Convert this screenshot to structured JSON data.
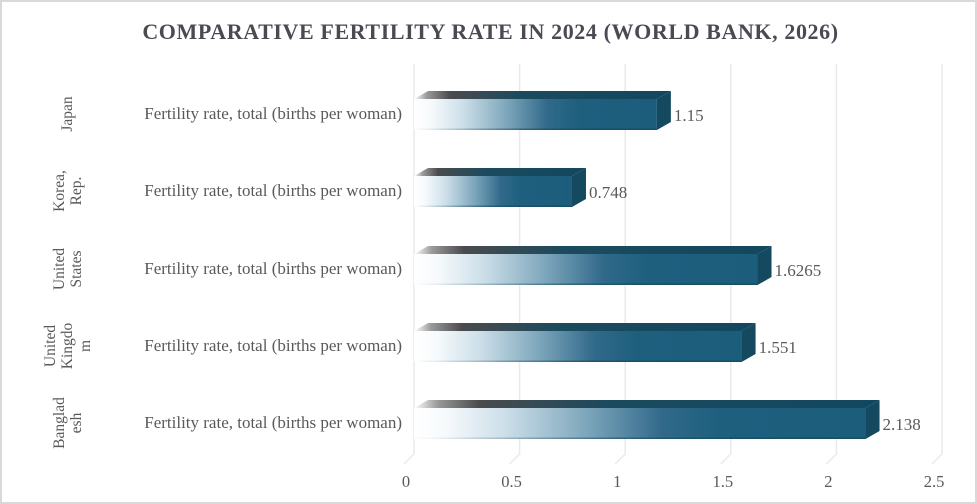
{
  "window": {
    "type": "spreadsheet-chart",
    "background": "#FFFFFF",
    "border_color": "#D9D9D9"
  },
  "chart_data": {
    "type": "bar",
    "orientation": "horizontal",
    "style": "3d-beveled-bars-with-white-fade-gradient",
    "title": "COMPARATIVE FERTILITY RATE IN 2024 (WORLD BANK, 2026)",
    "series": [
      {
        "name": "Fertility rate, total (births per woman)",
        "values": [
          1.15,
          0.748,
          1.6265,
          1.551,
          2.138
        ]
      }
    ],
    "categories": [
      "Japan",
      "Korea, Rep.",
      "United States",
      "United Kingdom",
      "Bangladesh"
    ],
    "category_display_lines": [
      "Japan",
      "Korea,\nRep.",
      "United\nStates",
      "United\nKingdo\nm",
      "Banglad\nesh"
    ],
    "value_labels": [
      "1.15",
      "0.748",
      "1.6265",
      "1.551",
      "2.138"
    ],
    "xlim": [
      0,
      2.5
    ],
    "x_ticks": [
      0,
      0.5,
      1,
      1.5,
      2,
      2.5
    ],
    "x_tick_labels": [
      "0",
      "0.5",
      "1",
      "1.5",
      "2",
      "2.5"
    ],
    "grid": "vertical-only",
    "legend": "none",
    "category_axis_side": "left",
    "value_axis_side": "bottom"
  },
  "colors": {
    "bar_front": "#1E5F7E",
    "bar_side": "#15495F",
    "bar_top": "#17465C",
    "bar_top_dark_start": "#4B4B4D",
    "gridline": "#EAEAEA",
    "label_text": "#595959",
    "title_text": "#4A4B52"
  }
}
